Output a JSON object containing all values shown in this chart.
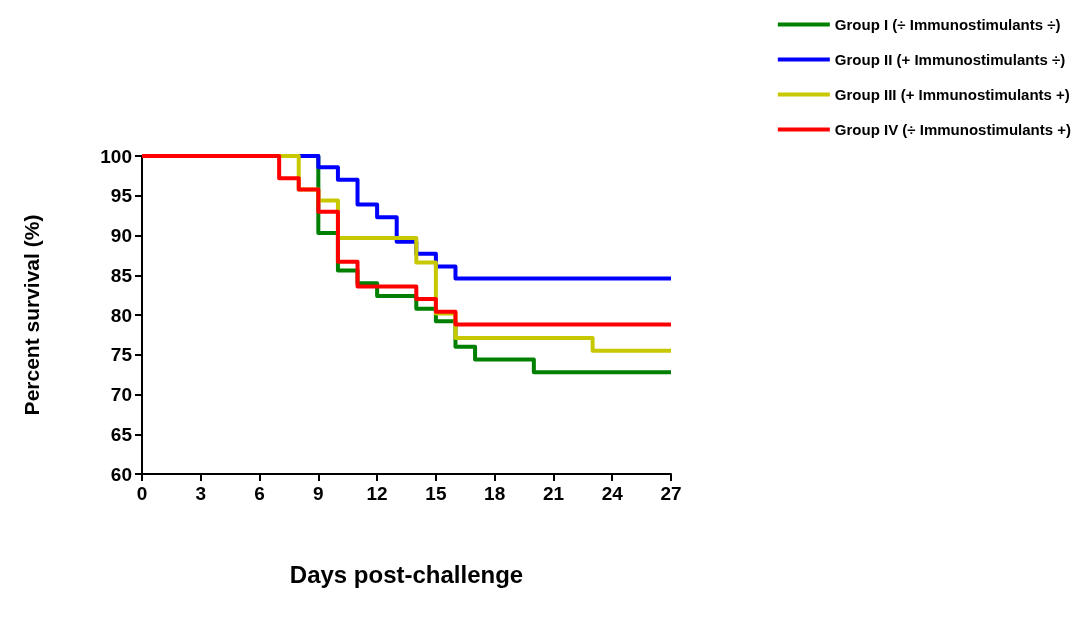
{
  "chart_data": {
    "type": "step",
    "xlabel": "Days post-challenge",
    "ylabel": "Percent survival (%)",
    "xlim": [
      0,
      27
    ],
    "xticks": [
      0,
      3,
      6,
      9,
      12,
      15,
      18,
      21,
      24,
      27
    ],
    "ylim": [
      60,
      100
    ],
    "yticks": [
      60,
      65,
      70,
      75,
      80,
      85,
      90,
      95,
      100
    ],
    "grid": false,
    "legend": "top right",
    "marker": "none",
    "line_style": "solid",
    "series": [
      {
        "name": "Group I (÷ Immunostimulants ÷)",
        "color": "#008000",
        "x": [
          0,
          9,
          10,
          11,
          12,
          14,
          15,
          16,
          17,
          20,
          27
        ],
        "values": [
          100,
          90.3,
          85.6,
          84.0,
          82.4,
          80.8,
          79.2,
          76.0,
          74.4,
          72.8,
          72.8
        ]
      },
      {
        "name": "Group II (+ Immunostimulants ÷)",
        "color": "#0000ff",
        "x": [
          0,
          9,
          10,
          11,
          12,
          13,
          14,
          15,
          16,
          27
        ],
        "values": [
          100,
          98.6,
          97.0,
          93.9,
          92.3,
          89.2,
          87.7,
          86.1,
          84.6,
          84.6
        ]
      },
      {
        "name": "Group III (+ Immunostimulants +)",
        "color": "#c8c800",
        "x": [
          0,
          8,
          9,
          10,
          14,
          15,
          16,
          23,
          27
        ],
        "values": [
          100,
          95.8,
          94.4,
          89.7,
          86.6,
          80.2,
          77.1,
          75.5,
          75.5
        ]
      },
      {
        "name": "Group IV (÷ Immunostimulants +)",
        "color": "#ff0000",
        "x": [
          0,
          7,
          8,
          9,
          10,
          11,
          14,
          15,
          16,
          27
        ],
        "values": [
          100,
          97.2,
          95.8,
          93.0,
          86.7,
          83.6,
          82.0,
          80.4,
          78.8,
          78.8
        ]
      }
    ]
  }
}
